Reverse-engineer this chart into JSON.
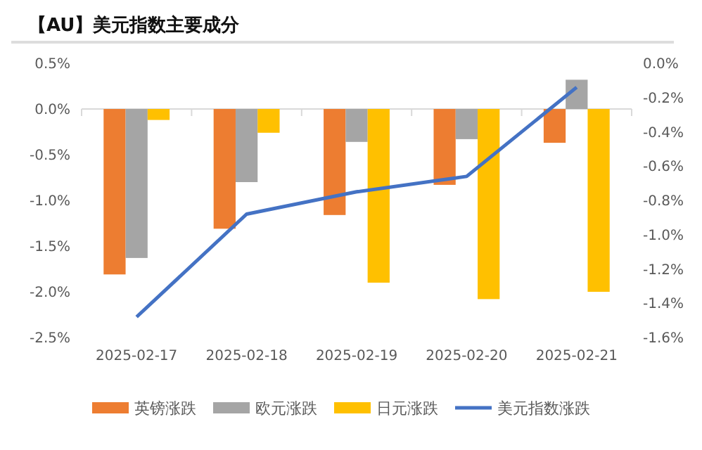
{
  "chart_data": {
    "type": "bar",
    "title": "【AU】美元指数主要成分",
    "categories": [
      "2025-02-17",
      "2025-02-18",
      "2025-02-19",
      "2025-02-20",
      "2025-02-21"
    ],
    "series": [
      {
        "name": "英镑涨跌",
        "color": "#ed7d31",
        "values": [
          -1.81,
          -1.31,
          -1.16,
          -0.83,
          -0.37
        ]
      },
      {
        "name": "欧元涨跌",
        "color": "#a5a5a5",
        "values": [
          -1.63,
          -0.8,
          -0.36,
          -0.33,
          0.32
        ]
      },
      {
        "name": "日元涨跌",
        "color": "#ffc000",
        "values": [
          -0.12,
          -0.26,
          -1.9,
          -2.08,
          -2.0
        ]
      },
      {
        "name": "美元指数涨跌",
        "color": "#4472c4",
        "type": "line",
        "axis": "y2",
        "values": [
          -1.48,
          -0.88,
          -0.75,
          -0.66,
          -0.14
        ]
      }
    ],
    "ylim": [
      -2.5,
      0.5
    ],
    "yticks": [
      {
        "value": -2.5,
        "label": "-2.5%"
      },
      {
        "value": -2,
        "label": "-2.0%"
      },
      {
        "value": -1.5,
        "label": "-1.5%"
      },
      {
        "value": -1,
        "label": "-1.0%"
      },
      {
        "value": -0.5,
        "label": "-0.5%"
      },
      {
        "value": 0,
        "label": "0.0%"
      },
      {
        "value": 0.5,
        "label": "0.5%"
      }
    ],
    "y2lim": [
      -1.6,
      0
    ],
    "y2ticks": [
      {
        "value": -1.6,
        "label": "-1.6%"
      },
      {
        "value": -1.4,
        "label": "-1.4%"
      },
      {
        "value": -1.2,
        "label": "-1.2%"
      },
      {
        "value": -1,
        "label": "-1.0%"
      },
      {
        "value": -0.8,
        "label": "-0.8%"
      },
      {
        "value": -0.6,
        "label": "-0.6%"
      },
      {
        "value": -0.4,
        "label": "-0.4%"
      },
      {
        "value": -0.2,
        "label": "-0.2%"
      },
      {
        "value": 0,
        "label": "0.0%"
      }
    ],
    "legend": "bottom",
    "marker": "none",
    "line_style": "solid"
  }
}
